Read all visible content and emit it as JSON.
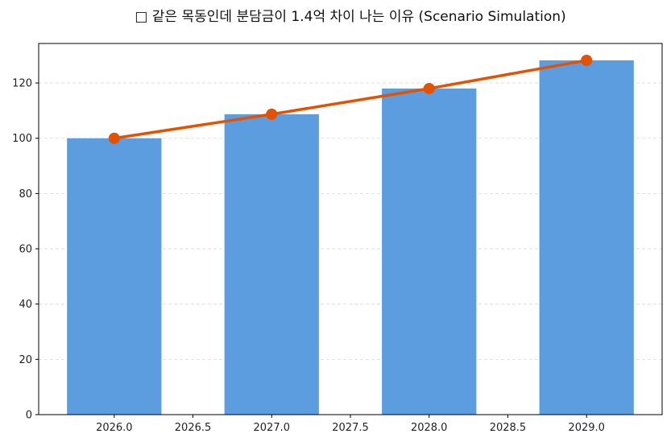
{
  "chart_data": {
    "type": "bar+line",
    "title": "□ 같은 목동인데 분담금이 1.4억 차이 나는 이유 (Scenario Simulation)",
    "xlabel": "",
    "ylabel": "",
    "x": [
      2026,
      2027,
      2028,
      2029
    ],
    "bar_values": [
      100,
      108.7,
      118.0,
      128.2
    ],
    "line_values": [
      100,
      108.7,
      118.0,
      128.2
    ],
    "xlim": [
      2025.52,
      2029.48
    ],
    "ylim": [
      0,
      134.3
    ],
    "xticks": [
      "2026.0",
      "2026.5",
      "2027.0",
      "2027.5",
      "2028.0",
      "2028.5",
      "2029.0"
    ],
    "xtick_values": [
      2026.0,
      2026.5,
      2027.0,
      2027.5,
      2028.0,
      2028.5,
      2029.0
    ],
    "yticks": [
      "0",
      "20",
      "40",
      "60",
      "80",
      "100",
      "120"
    ],
    "ytick_values": [
      0,
      20,
      40,
      60,
      80,
      100,
      120
    ],
    "bar_width": 0.6,
    "grid": "y-dashed",
    "legend": "none",
    "colors": {
      "bar": "#5b9ddf",
      "line": "#e65100",
      "grid": "#d9d9d9"
    }
  }
}
